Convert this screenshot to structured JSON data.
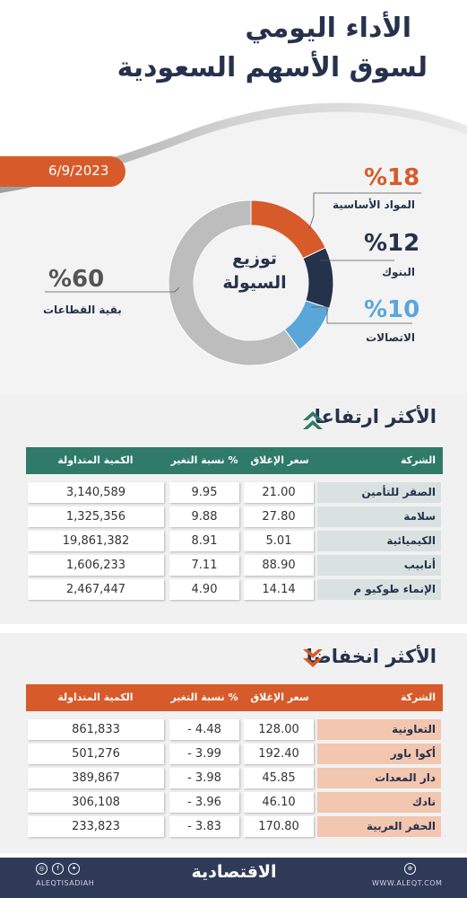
{
  "header": {
    "title_line1": "الأداء اليومي",
    "title_line2": "لسوق الأسهم السعودية",
    "date": "6/9/2023"
  },
  "liquidity": {
    "center_line1": "توزيع",
    "center_line2": "السيولة",
    "sectors": [
      {
        "pct": "%18",
        "label": "المواد الأساسية",
        "value": 18,
        "color": "#d75b2a"
      },
      {
        "pct": "%12",
        "label": "البنوك",
        "value": 12,
        "color": "#26324c"
      },
      {
        "pct": "%10",
        "label": "الاتصالات",
        "value": 10,
        "color": "#5aa6d9"
      },
      {
        "pct": "%60",
        "label": "بقية القطاعات",
        "value": 60,
        "color": "#bdbdbd"
      }
    ]
  },
  "gainers": {
    "title": "الأكثر ارتفاعا",
    "header_color": "#2f7a68",
    "columns": {
      "company": "الشركة",
      "close": "سعر الإغلاق",
      "change": "نسبة التغير %",
      "volume": "الكمية المتداولة"
    },
    "rows": [
      {
        "company": "الصقر للتأمين",
        "close": "21.00",
        "change": "9.95",
        "volume": "3,140,589"
      },
      {
        "company": "سلامة",
        "close": "27.80",
        "change": "9.88",
        "volume": "1,325,356"
      },
      {
        "company": "الكيميائية",
        "close": "5.01",
        "change": "8.91",
        "volume": "19,861,382"
      },
      {
        "company": "أنابيب",
        "close": "88.90",
        "change": "7.11",
        "volume": "1,606,233"
      },
      {
        "company": "الإنماء طوكيو م",
        "close": "14.14",
        "change": "4.90",
        "volume": "2,467,447"
      }
    ]
  },
  "losers": {
    "title": "الأكثر انخفاضا",
    "header_color": "#d75b2a",
    "columns": {
      "company": "الشركة",
      "close": "سعر الإغلاق",
      "change": "نسبة التغير %",
      "volume": "الكمية المتداولة"
    },
    "rows": [
      {
        "company": "التعاونية",
        "close": "128.00",
        "change": "- 4.48",
        "volume": "861,833"
      },
      {
        "company": "أكوا باور",
        "close": "192.40",
        "change": "- 3.99",
        "volume": "501,276"
      },
      {
        "company": "دار المعدات",
        "close": "45.85",
        "change": "- 3.98",
        "volume": "389,867"
      },
      {
        "company": "نادك",
        "close": "46.10",
        "change": "- 3.96",
        "volume": "306,108"
      },
      {
        "company": "الحفر العربية",
        "close": "170.80",
        "change": "- 3.83",
        "volume": "233,823"
      }
    ]
  },
  "footer": {
    "brand": "الاقتصادية",
    "website": "WWW.ALEQT.COM",
    "social_handle": "ALEQTISADIAH"
  }
}
